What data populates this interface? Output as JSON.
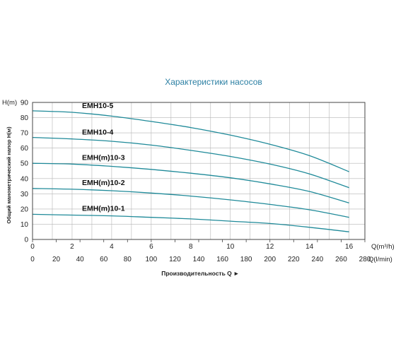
{
  "chart_data": {
    "type": "line",
    "title": "Характеристики насосов",
    "ylabel_top": "H(m)",
    "ylabel": "Общий манометрический напор H(м)",
    "xlabel_top": "Q(m³/h)",
    "xlabel_bottom": "Q(l/min)",
    "xlabel": "Производительность Q",
    "xlabel_arrow": "►",
    "ylim": [
      0,
      90
    ],
    "yticks": [
      0,
      10,
      20,
      30,
      40,
      50,
      60,
      70,
      80,
      90
    ],
    "xlim_m3h": [
      0,
      16.8
    ],
    "xticks_m3h": [
      0,
      2,
      4,
      6,
      8,
      10,
      12,
      14,
      16
    ],
    "xticks_lmin": [
      0,
      20,
      40,
      60,
      80,
      100,
      120,
      140,
      160,
      180,
      200,
      220,
      240,
      260,
      280
    ],
    "grid": true,
    "series_color": "#1f8a99",
    "series": [
      {
        "name": "EMH10-5",
        "x": [
          0,
          2,
          4,
          6,
          8,
          10,
          12,
          14,
          16
        ],
        "y": [
          84.5,
          83.5,
          81,
          77.5,
          73.5,
          68.5,
          62.5,
          55,
          44.5
        ]
      },
      {
        "name": "EMH10-4",
        "x": [
          0,
          2,
          4,
          6,
          8,
          10,
          12,
          14,
          16
        ],
        "y": [
          67,
          66,
          64.5,
          62,
          58.5,
          54.5,
          49.5,
          43,
          34
        ]
      },
      {
        "name": "EMH(m)10-3",
        "x": [
          0,
          2,
          4,
          6,
          8,
          10,
          12,
          14,
          16
        ],
        "y": [
          50,
          49.5,
          48,
          46,
          43.5,
          40.5,
          36.5,
          31.5,
          24
        ]
      },
      {
        "name": "EMH(m)10-2",
        "x": [
          0,
          2,
          4,
          6,
          8,
          10,
          12,
          14,
          16
        ],
        "y": [
          33.5,
          33,
          32,
          30.5,
          28.5,
          26,
          23,
          19.5,
          14.5
        ]
      },
      {
        "name": "EMH(m)10-1",
        "x": [
          0,
          2,
          4,
          6,
          8,
          10,
          12,
          14,
          16
        ],
        "y": [
          16.5,
          16,
          15.5,
          14.5,
          13.5,
          12,
          10.5,
          8,
          5
        ]
      }
    ]
  }
}
